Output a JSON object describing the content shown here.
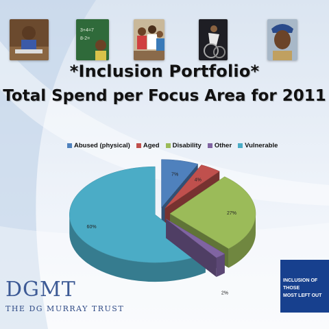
{
  "header": {
    "photos": [
      {
        "icon": "child-at-desk-photo"
      },
      {
        "icon": "child-at-blackboard-photo"
      },
      {
        "icon": "students-group-photo"
      },
      {
        "icon": "wheelchair-athlete-photo"
      },
      {
        "icon": "elderly-woman-photo"
      }
    ]
  },
  "title_line1": "*Inclusion Portfolio*",
  "title_line2": "Total Spend per Focus Area for 2011",
  "logo": {
    "word": "DGMT",
    "subtitle": "THE DG MURRAY TRUST",
    "color": "#3d5a95"
  },
  "tagline": {
    "line1": "INCLUSION OF THOSE",
    "line2": "MOST LEFT OUT",
    "background": "#17408e"
  },
  "chart_data": {
    "type": "pie",
    "style": "3d-exploded",
    "title": "",
    "legend_position": "top",
    "slices": [
      {
        "name": "Abused (physical)",
        "value": 7,
        "label": "7%",
        "color": "#4f81bd"
      },
      {
        "name": "Aged",
        "value": 4,
        "label": "4%",
        "color": "#c0504d"
      },
      {
        "name": "Disability",
        "value": 27,
        "label": "27%",
        "color": "#9bbb59"
      },
      {
        "name": "Other",
        "value": 2,
        "label": "2%",
        "color": "#8064a2"
      },
      {
        "name": "Vulnerable",
        "value": 60,
        "label": "60%",
        "color": "#4bacc6"
      }
    ]
  }
}
